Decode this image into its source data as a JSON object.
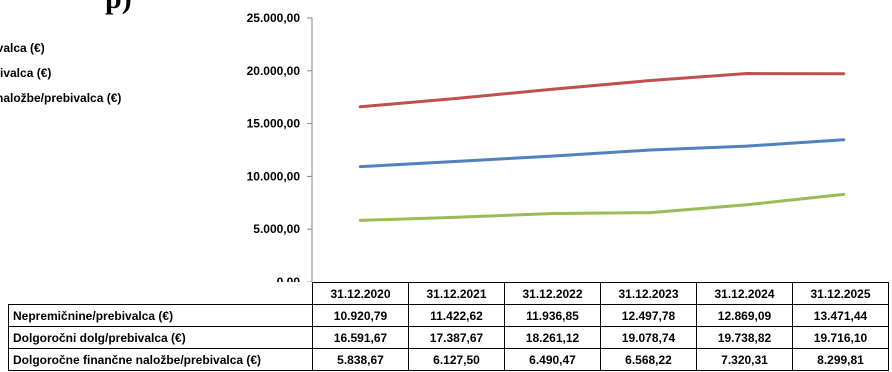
{
  "page_heading": {
    "text": "p",
    "link_text": "",
    "tail": ")"
  },
  "chart_data": {
    "type": "line",
    "categories": [
      "31.12.2020",
      "31.12.2021",
      "31.12.2022",
      "31.12.2023",
      "31.12.2024",
      "31.12.2025"
    ],
    "ylim": [
      0,
      25000
    ],
    "yticks": [
      "0,00",
      "5.000,00",
      "10.000,00",
      "15.000,00",
      "20.000,00",
      "25.000,00"
    ],
    "grid": false,
    "legend_position": "left",
    "legend_partial_labels": [
      "bivalca (€)",
      "ebivalca (€)",
      "e naložbe/prebivalca (€)"
    ],
    "series": [
      {
        "name": "Nepremičnine/prebivalca (€)",
        "color": "#4f81bd",
        "values": [
          10920.79,
          11422.62,
          11936.85,
          12497.78,
          12869.09,
          13471.44
        ],
        "labels": [
          "10.920,79",
          "11.422,62",
          "11.936,85",
          "12.497,78",
          "12.869,09",
          "13.471,44"
        ]
      },
      {
        "name": "Dolgoročni dolg/prebivalca (€)",
        "color": "#c0504d",
        "values": [
          16591.67,
          17387.67,
          18261.12,
          19078.74,
          19738.82,
          19716.1
        ],
        "labels": [
          "16.591,67",
          "17.387,67",
          "18.261,12",
          "19.078,74",
          "19.738,82",
          "19.716,10"
        ]
      },
      {
        "name": "Dolgoročne finančne naložbe/prebivalca (€)",
        "color": "#9bbb59",
        "values": [
          5838.67,
          6127.5,
          6490.47,
          6568.22,
          7320.31,
          8299.81
        ],
        "labels": [
          "5.838,67",
          "6.127,50",
          "6.490,47",
          "6.568,22",
          "7.320,31",
          "8.299,81"
        ]
      }
    ]
  }
}
